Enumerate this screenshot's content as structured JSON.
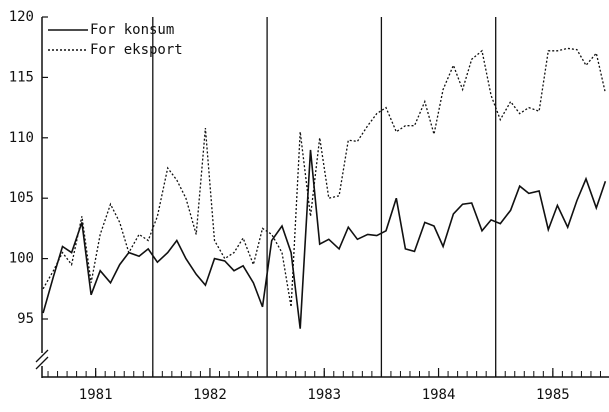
{
  "chart_data": {
    "type": "line",
    "x": [
      1981.04,
      1981.13,
      1981.21,
      1981.29,
      1981.38,
      1981.46,
      1981.54,
      1981.63,
      1981.71,
      1981.79,
      1981.88,
      1981.96,
      1982.04,
      1982.13,
      1982.21,
      1982.29,
      1982.38,
      1982.46,
      1982.54,
      1982.63,
      1982.71,
      1982.79,
      1982.88,
      1982.96,
      1983.04,
      1983.13,
      1983.21,
      1983.29,
      1983.38,
      1983.46,
      1983.54,
      1983.63,
      1983.71,
      1983.79,
      1983.88,
      1983.96,
      1984.04,
      1984.13,
      1984.21,
      1984.29,
      1984.38,
      1984.46,
      1984.54,
      1984.63,
      1984.71,
      1984.79,
      1984.88,
      1984.96,
      1985.04,
      1985.13,
      1985.21,
      1985.29,
      1985.38,
      1985.46,
      1985.54,
      1985.63,
      1985.71,
      1985.79,
      1985.88,
      1985.96
    ],
    "series": [
      {
        "name": "For konsum",
        "color": "#111111",
        "dash": "solid",
        "values": [
          95.5,
          98.5,
          101,
          100.5,
          103,
          97,
          99,
          98,
          99.5,
          100.5,
          100.2,
          100.8,
          99.7,
          100.5,
          101.5,
          100,
          98.7,
          97.8,
          100,
          99.8,
          99,
          99.4,
          98,
          96,
          101.5,
          102.7,
          100.5,
          94.2,
          109,
          101.2,
          101.6,
          100.8,
          102.6,
          101.6,
          102,
          101.9,
          102.3,
          105,
          100.8,
          100.6,
          103,
          102.7,
          101,
          103.7,
          104.5,
          104.6,
          102.3,
          103.2,
          102.9,
          104,
          106,
          105.4,
          105.6,
          102.4,
          104.4,
          102.6,
          104.8,
          106.6,
          104.2,
          106.4
        ]
      },
      {
        "name": "For eksport",
        "color": "#111111",
        "dash": "dotted",
        "values": [
          97.5,
          99,
          100.5,
          99.5,
          103.5,
          98,
          102,
          104.5,
          103,
          100.5,
          102,
          101.5,
          103.5,
          107.5,
          106.5,
          105,
          102,
          110.8,
          101.5,
          100,
          100.5,
          101.7,
          99.5,
          102.5,
          102,
          100.5,
          96,
          110.5,
          103.5,
          110,
          105,
          105.2,
          109.8,
          109.7,
          111,
          112,
          112.5,
          110.5,
          111,
          111,
          113,
          110.3,
          114,
          116,
          114,
          116.5,
          117.2,
          113.5,
          111.5,
          113,
          112,
          112.5,
          112.2,
          117.2,
          117.2,
          117.4,
          117.3,
          116,
          117,
          113.7
        ]
      }
    ],
    "xlim": [
      1981,
      1986
    ],
    "xticks": [
      {
        "value": 1981.5,
        "label": "1981"
      },
      {
        "value": 1982.5,
        "label": "1982"
      },
      {
        "value": 1983.5,
        "label": "1983"
      },
      {
        "value": 1984.5,
        "label": "1984"
      },
      {
        "value": 1985.5,
        "label": "1985"
      }
    ],
    "vlines": [
      1982,
      1983,
      1984,
      1985
    ],
    "ylim": [
      90,
      120
    ],
    "yticks": [
      95,
      100,
      105,
      110,
      115,
      120
    ],
    "legend": "upper left"
  }
}
